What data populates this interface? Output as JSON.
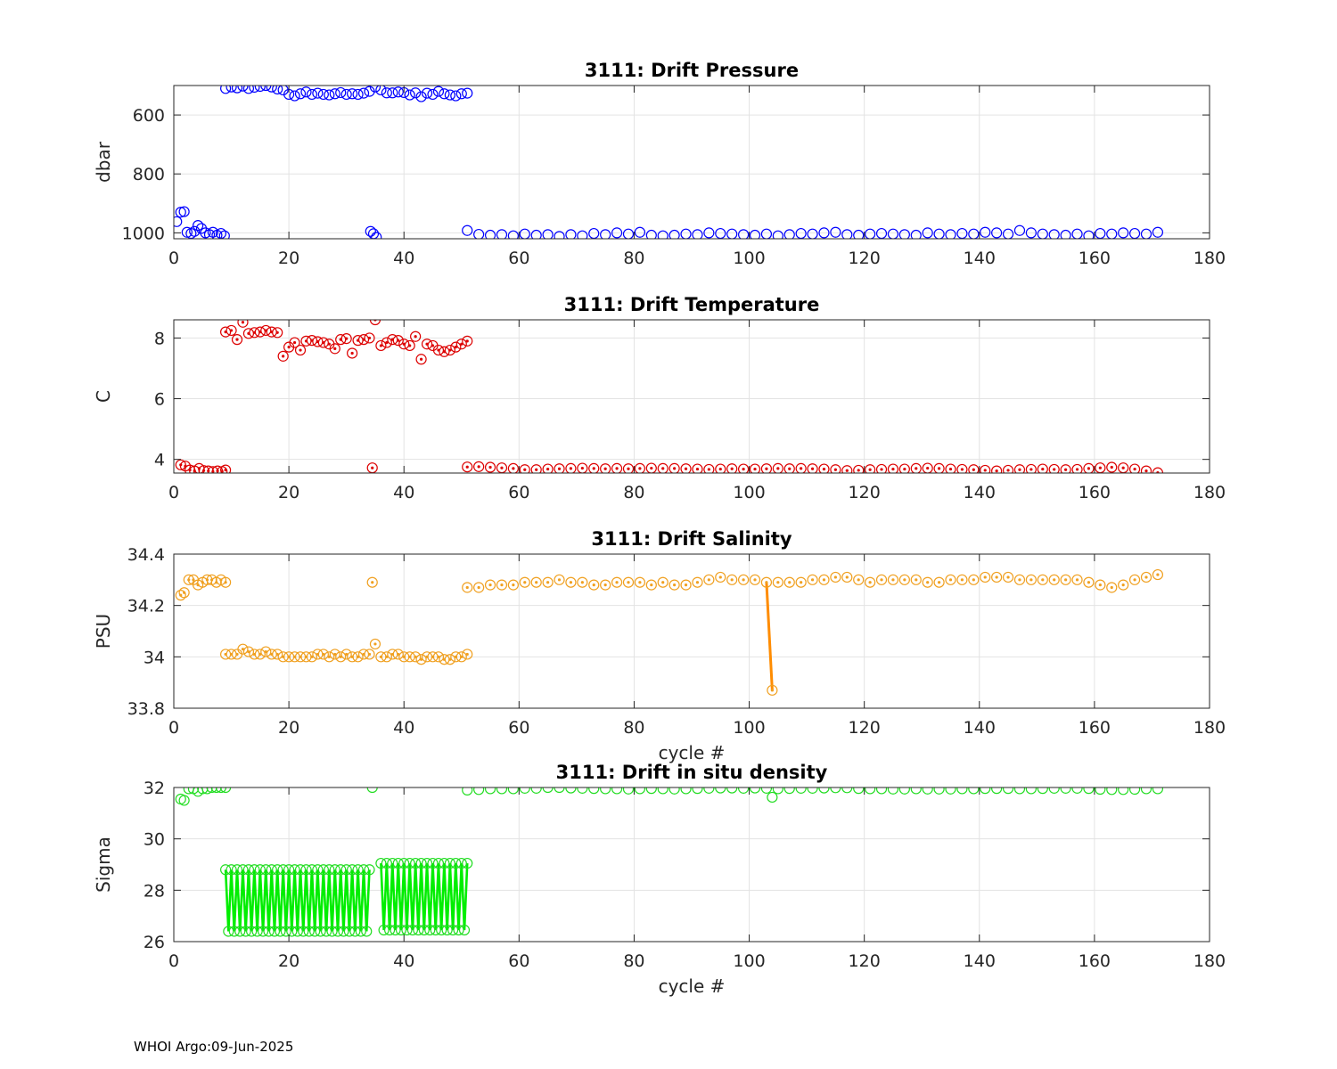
{
  "footer": "WHOI Argo:09-Jun-2025",
  "chart_data": [
    {
      "id": "pressure",
      "type": "scatter",
      "title": "3111: Drift Pressure",
      "xlabel": "",
      "ylabel": "dbar",
      "xlim": [
        0,
        180
      ],
      "ylim": [
        1020,
        500
      ],
      "y_reversed": true,
      "xticks": [
        0,
        20,
        40,
        60,
        80,
        100,
        120,
        140,
        160,
        180
      ],
      "yticks": [
        600,
        800,
        1000
      ],
      "grid": true,
      "color": "#0000ff",
      "marker": "circle",
      "segments": [
        {
          "x": [
            0.5,
            1.2,
            1.8,
            2.3,
            3.0,
            3.6,
            4.2,
            4.8,
            5.5,
            6.2,
            6.8,
            7.5,
            8.2,
            8.8
          ],
          "y": [
            962,
            930,
            928,
            998,
            1002,
            995,
            975,
            985,
            1000,
            1006,
            998,
            1008,
            1002,
            1010
          ]
        },
        {
          "x": [
            9,
            10,
            11,
            12,
            13,
            14,
            15,
            16,
            17,
            18,
            19,
            20,
            21,
            22,
            23,
            24,
            25,
            26,
            27,
            28,
            29,
            30,
            31,
            32,
            33,
            34,
            35,
            36,
            37,
            38,
            39,
            40,
            41,
            42,
            43,
            44,
            45,
            46,
            47,
            48,
            49,
            50,
            51
          ],
          "y": [
            510,
            505,
            508,
            502,
            510,
            506,
            503,
            500,
            505,
            512,
            515,
            530,
            535,
            528,
            522,
            530,
            526,
            530,
            532,
            528,
            524,
            530,
            528,
            530,
            526,
            520,
            505,
            515,
            525,
            525,
            522,
            524,
            532,
            525,
            538,
            526,
            530,
            520,
            528,
            532,
            535,
            528,
            526
          ]
        },
        {
          "x": [
            34.2,
            34.7,
            35.2
          ],
          "y": [
            995,
            1003,
            1015
          ]
        },
        {
          "x": [
            51,
            53,
            55,
            57,
            59,
            61,
            63,
            65,
            67,
            69,
            71,
            73,
            75,
            77,
            79,
            81,
            83,
            85,
            87,
            89,
            91,
            93,
            95,
            97,
            99,
            101,
            103,
            105,
            107,
            109,
            111,
            113,
            115,
            117,
            119,
            121,
            123,
            125,
            127,
            129,
            131,
            133,
            135,
            137,
            139,
            141,
            143,
            145,
            147,
            149,
            151,
            153,
            155,
            157,
            159,
            161,
            163,
            165,
            167,
            169,
            171
          ],
          "y": [
            992,
            1005,
            1008,
            1006,
            1010,
            1004,
            1008,
            1006,
            1012,
            1006,
            1010,
            1002,
            1006,
            1000,
            1004,
            998,
            1008,
            1010,
            1008,
            1004,
            1006,
            1000,
            1002,
            1004,
            1006,
            1008,
            1004,
            1010,
            1006,
            1002,
            1004,
            1000,
            998,
            1006,
            1008,
            1004,
            1002,
            1004,
            1006,
            1008,
            1000,
            1004,
            1006,
            1002,
            1004,
            998,
            1000,
            1004,
            992,
            1000,
            1004,
            1006,
            1008,
            1004,
            1010,
            1002,
            1004,
            1000,
            1002,
            1004,
            998
          ]
        }
      ]
    },
    {
      "id": "temperature",
      "type": "scatter",
      "title": "3111: Drift Temperature",
      "xlabel": "",
      "ylabel": "C",
      "xlim": [
        0,
        180
      ],
      "ylim": [
        3.55,
        8.6
      ],
      "xticks": [
        0,
        20,
        40,
        60,
        80,
        100,
        120,
        140,
        160,
        180
      ],
      "yticks": [
        4,
        6,
        8
      ],
      "grid": true,
      "color": "#dd0000",
      "marker": "circle-dot",
      "segments": [
        {
          "x": [
            1.2,
            2.0,
            2.8,
            3.6,
            4.4,
            5.2,
            6.0,
            6.8,
            7.6,
            8.4,
            9.0
          ],
          "y": [
            3.82,
            3.78,
            3.65,
            3.62,
            3.7,
            3.63,
            3.62,
            3.6,
            3.62,
            3.6,
            3.65
          ]
        },
        {
          "x": [
            9,
            10,
            11,
            12,
            13,
            14,
            15,
            16,
            17,
            18,
            19,
            20,
            21,
            22,
            23,
            24,
            25,
            26,
            27,
            28,
            29,
            30,
            31,
            32,
            33,
            34,
            35,
            36,
            37,
            38,
            39,
            40,
            41,
            42,
            43,
            44,
            45,
            46,
            47,
            48,
            49,
            50,
            51
          ],
          "y": [
            8.2,
            8.25,
            7.95,
            8.52,
            8.15,
            8.18,
            8.2,
            8.25,
            8.2,
            8.18,
            7.4,
            7.7,
            7.85,
            7.6,
            7.9,
            7.92,
            7.88,
            7.85,
            7.8,
            7.65,
            7.95,
            7.98,
            7.5,
            7.92,
            7.95,
            8.0,
            8.6,
            7.75,
            7.85,
            7.95,
            7.92,
            7.8,
            7.75,
            8.05,
            7.3,
            7.8,
            7.75,
            7.6,
            7.55,
            7.6,
            7.7,
            7.8,
            7.9
          ]
        },
        {
          "x": [
            34.5
          ],
          "y": [
            3.72
          ]
        },
        {
          "x": [
            51,
            53,
            55,
            57,
            59,
            61,
            63,
            65,
            67,
            69,
            71,
            73,
            75,
            77,
            79,
            81,
            83,
            85,
            87,
            89,
            91,
            93,
            95,
            97,
            99,
            101,
            103,
            105,
            107,
            109,
            111,
            113,
            115,
            117,
            119,
            121,
            123,
            125,
            127,
            129,
            131,
            133,
            135,
            137,
            139,
            141,
            143,
            145,
            147,
            149,
            151,
            153,
            155,
            157,
            159,
            161,
            163,
            165,
            167,
            169,
            171
          ],
          "y": [
            3.75,
            3.76,
            3.74,
            3.72,
            3.7,
            3.66,
            3.66,
            3.68,
            3.69,
            3.7,
            3.71,
            3.7,
            3.69,
            3.7,
            3.69,
            3.7,
            3.71,
            3.7,
            3.7,
            3.69,
            3.68,
            3.67,
            3.68,
            3.69,
            3.68,
            3.68,
            3.69,
            3.7,
            3.69,
            3.7,
            3.69,
            3.68,
            3.66,
            3.63,
            3.64,
            3.66,
            3.67,
            3.68,
            3.68,
            3.7,
            3.71,
            3.7,
            3.68,
            3.67,
            3.66,
            3.64,
            3.62,
            3.64,
            3.66,
            3.67,
            3.68,
            3.67,
            3.66,
            3.67,
            3.7,
            3.72,
            3.74,
            3.72,
            3.68,
            3.62,
            3.56
          ]
        }
      ]
    },
    {
      "id": "salinity",
      "type": "scatter",
      "title": "3111: Drift Salinity",
      "xlabel": "cycle #",
      "ylabel": "PSU",
      "xlim": [
        0,
        180
      ],
      "ylim": [
        33.8,
        34.4
      ],
      "xticks": [
        0,
        20,
        40,
        60,
        80,
        100,
        120,
        140,
        160,
        180
      ],
      "yticks": [
        33.8,
        34,
        34.2,
        34.4
      ],
      "grid": true,
      "color": "#f0a020",
      "line_color": "#ff8c00",
      "marker": "circle-dot",
      "segments": [
        {
          "x": [
            1.2,
            1.8,
            2.6,
            3.4,
            4.2,
            5.0,
            5.8,
            6.6,
            7.4,
            8.2,
            9.0
          ],
          "y": [
            34.24,
            34.25,
            34.3,
            34.3,
            34.28,
            34.29,
            34.3,
            34.3,
            34.29,
            34.3,
            34.29
          ]
        },
        {
          "x": [
            9,
            10,
            11,
            12,
            13,
            14,
            15,
            16,
            17,
            18,
            19,
            20,
            21,
            22,
            23,
            24,
            25,
            26,
            27,
            28,
            29,
            30,
            31,
            32,
            33,
            34,
            35,
            36,
            37,
            38,
            39,
            40,
            41,
            42,
            43,
            44,
            45,
            46,
            47,
            48,
            49,
            50,
            51
          ],
          "y": [
            34.01,
            34.01,
            34.01,
            34.03,
            34.02,
            34.01,
            34.01,
            34.02,
            34.01,
            34.01,
            34.0,
            34.0,
            34.0,
            34.0,
            34.0,
            34.0,
            34.01,
            34.01,
            34.0,
            34.01,
            34.0,
            34.01,
            34.0,
            34.0,
            34.01,
            34.01,
            34.05,
            34.0,
            34.0,
            34.01,
            34.01,
            34.0,
            34.0,
            34.0,
            33.99,
            34.0,
            34.0,
            34.0,
            33.99,
            33.99,
            34.0,
            34.0,
            34.01
          ]
        },
        {
          "x": [
            34.5
          ],
          "y": [
            34.29
          ]
        },
        {
          "x": [
            51,
            53,
            55,
            57,
            59,
            61,
            63,
            65,
            67,
            69,
            71,
            73,
            75,
            77,
            79,
            81,
            83,
            85,
            87,
            89,
            91,
            93,
            95,
            97,
            99,
            101,
            103,
            104
          ],
          "y": [
            34.27,
            34.27,
            34.28,
            34.28,
            34.28,
            34.29,
            34.29,
            34.29,
            34.3,
            34.29,
            34.29,
            34.28,
            34.28,
            34.29,
            34.29,
            34.29,
            34.28,
            34.29,
            34.28,
            34.28,
            34.29,
            34.3,
            34.31,
            34.3,
            34.3,
            34.3,
            34.29,
            33.87
          ]
        },
        {
          "x": [
            105,
            107,
            109,
            111,
            113,
            115,
            117,
            119,
            121,
            123,
            125,
            127,
            129,
            131,
            133,
            135,
            137,
            139,
            141,
            143,
            145,
            147,
            149,
            151,
            153,
            155,
            157,
            159,
            161,
            163,
            165,
            167,
            169,
            171
          ],
          "y": [
            34.29,
            34.29,
            34.29,
            34.3,
            34.3,
            34.31,
            34.31,
            34.3,
            34.29,
            34.3,
            34.3,
            34.3,
            34.3,
            34.29,
            34.29,
            34.3,
            34.3,
            34.3,
            34.31,
            34.31,
            34.31,
            34.3,
            34.3,
            34.3,
            34.3,
            34.3,
            34.3,
            34.29,
            34.28,
            34.27,
            34.28,
            34.3,
            34.31,
            34.32
          ]
        }
      ],
      "lines": [
        {
          "x": [
            103,
            104
          ],
          "y": [
            34.29,
            33.87
          ]
        }
      ]
    },
    {
      "id": "density",
      "type": "scatter",
      "title": "3111: Drift in situ density",
      "xlabel": "cycle #",
      "ylabel": "Sigma",
      "xlim": [
        0,
        180
      ],
      "ylim": [
        26,
        32
      ],
      "xticks": [
        0,
        20,
        40,
        60,
        80,
        100,
        120,
        140,
        160,
        180
      ],
      "yticks": [
        26,
        28,
        30,
        32
      ],
      "grid": true,
      "color": "#22dd22",
      "line_color": "#00ee00",
      "marker": "circle",
      "segments": [
        {
          "x": [
            1.2,
            1.8,
            2.6,
            3.4,
            4.2,
            5.0,
            5.8,
            6.6,
            7.4,
            8.2,
            9.0
          ],
          "y": [
            31.55,
            31.5,
            31.95,
            31.95,
            31.85,
            31.95,
            31.95,
            32.0,
            32.0,
            32.0,
            32.0
          ]
        },
        {
          "x": [
            34.5
          ],
          "y": [
            32.0
          ]
        },
        {
          "x": [
            51,
            53,
            55,
            57,
            59,
            61,
            63,
            65,
            67,
            69,
            71,
            73,
            75,
            77,
            79,
            81,
            83,
            85,
            87,
            89,
            91,
            93,
            95,
            97,
            99,
            101,
            103,
            104,
            105,
            107,
            109,
            111,
            113,
            115,
            117,
            119,
            121,
            123,
            125,
            127,
            129,
            131,
            133,
            135,
            137,
            139,
            141,
            143,
            145,
            147,
            149,
            151,
            153,
            155,
            157,
            159,
            161,
            163,
            165,
            167,
            169,
            171
          ],
          "y": [
            31.9,
            31.92,
            31.95,
            31.95,
            31.95,
            31.97,
            31.97,
            32.0,
            32.0,
            31.98,
            31.97,
            31.96,
            31.95,
            31.95,
            31.94,
            31.95,
            31.96,
            31.95,
            31.94,
            31.95,
            31.96,
            31.97,
            31.98,
            31.98,
            31.97,
            31.98,
            31.97,
            31.62,
            31.95,
            31.96,
            31.97,
            31.97,
            31.98,
            31.99,
            31.99,
            31.96,
            31.95,
            31.95,
            31.94,
            31.94,
            31.95,
            31.94,
            31.94,
            31.94,
            31.95,
            31.95,
            31.96,
            31.96,
            31.96,
            31.95,
            31.95,
            31.96,
            31.97,
            31.97,
            31.97,
            31.96,
            31.93,
            31.92,
            31.92,
            31.93,
            31.95,
            31.95
          ]
        }
      ],
      "oscillation": {
        "x_start": [
          9,
          36
        ],
        "x_end": [
          34,
          51
        ],
        "high": [
          28.8,
          29.05
        ],
        "low": [
          26.4,
          26.45
        ]
      }
    }
  ]
}
